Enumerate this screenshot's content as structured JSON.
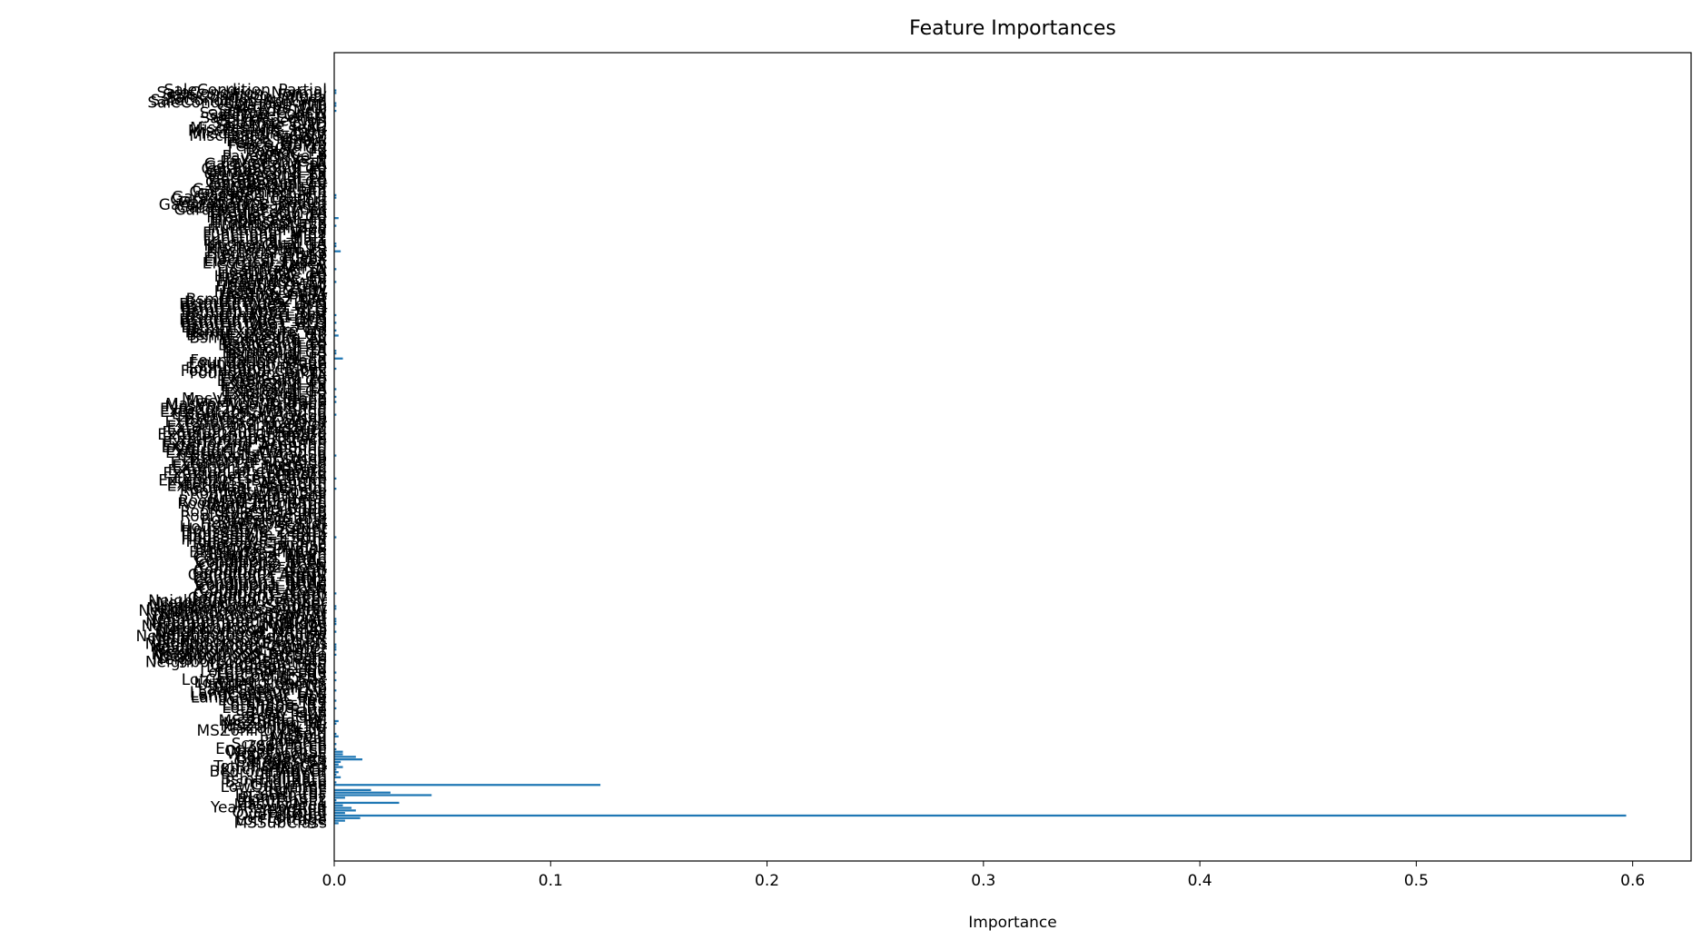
{
  "chart_data": {
    "type": "barh",
    "title": "Feature Importances",
    "xlabel": "Importance",
    "color": "#1f77b4",
    "xlim": [
      0,
      0.627
    ],
    "xticks": [
      {
        "value": 0,
        "label": "0.0"
      },
      0.1,
      0.2,
      0.3,
      0.4,
      0.5,
      0.6
    ],
    "grid": false,
    "categories": [
      "MSSubClass",
      "LotFrontage",
      "LotArea",
      "OverallQual",
      "OverallCond",
      "YearBuilt",
      "YearRemodAdd",
      "MasVnrArea",
      "BsmtFinSF1",
      "BsmtFinSF2",
      "BsmtUnfSF",
      "TotalBsmtSF",
      "1stFlrSF",
      "2ndFlrSF",
      "LowQualFinSF",
      "GrLivArea",
      "BsmtFullBath",
      "BsmtHalfBath",
      "FullBath",
      "HalfBath",
      "BedroomAbvGr",
      "KitchenAbvGr",
      "TotRmsAbvGrd",
      "Fireplaces",
      "GarageYrBlt",
      "GarageCars",
      "GarageArea",
      "WoodDeckSF",
      "OpenPorchSF",
      "EnclosedPorch",
      "3SsnPorch",
      "ScreenPorch",
      "PoolArea",
      "MiscVal",
      "MoSold",
      "YrSold",
      "MSZoning_C (all)",
      "MSZoning_FV",
      "MSZoning_RH",
      "MSZoning_RL",
      "MSZoning_RM",
      "Street_Grvl",
      "Street_Pave",
      "Alley_Grvl",
      "Alley_Pave",
      "LotShape_IR1",
      "LotShape_IR2",
      "LotShape_IR3",
      "LotShape_Reg",
      "LandContour_Bnk",
      "LandContour_HLS",
      "LandContour_Low",
      "LandContour_Lvl",
      "Utilities_AllPub",
      "Utilities_NoSeWa",
      "LotConfig_Corner",
      "LotConfig_CulDSac",
      "LotConfig_FR2",
      "LotConfig_FR3",
      "LotConfig_Inside",
      "LandSlope_Gtl",
      "LandSlope_Mod",
      "LandSlope_Sev",
      "Neighborhood_Blmngtn",
      "Neighborhood_Blueste",
      "Neighborhood_BrDale",
      "Neighborhood_BrkSide",
      "Neighborhood_ClearCr",
      "Neighborhood_CollgCr",
      "Neighborhood_Crawfor",
      "Neighborhood_Edwards",
      "Neighborhood_Gilbert",
      "Neighborhood_IDOTRR",
      "Neighborhood_MeadowV",
      "Neighborhood_Mitchel",
      "Neighborhood_NAmes",
      "Neighborhood_NPkVill",
      "Neighborhood_NWAmes",
      "Neighborhood_NoRidge",
      "Neighborhood_NridgHt",
      "Neighborhood_OldTown",
      "Neighborhood_SWISU",
      "Neighborhood_Sawyer",
      "Neighborhood_SawyerW",
      "Neighborhood_Somerst",
      "Neighborhood_StoneBr",
      "Neighborhood_Timber",
      "Neighborhood_Veenker",
      "Condition1_Artery",
      "Condition1_Feedr",
      "Condition1_Norm",
      "Condition1_PosA",
      "Condition1_PosN",
      "Condition1_RRAe",
      "Condition1_RRAn",
      "Condition1_RRNe",
      "Condition1_RRNn",
      "Condition2_Artery",
      "Condition2_Feedr",
      "Condition2_Norm",
      "Condition2_PosA",
      "Condition2_PosN",
      "Condition2_RRAe",
      "Condition2_RRAn",
      "Condition2_RRNn",
      "BldgType_1Fam",
      "BldgType_2fmCon",
      "BldgType_Duplex",
      "BldgType_Twnhs",
      "BldgType_TwnhsE",
      "HouseStyle_1.5Fin",
      "HouseStyle_1.5Unf",
      "HouseStyle_1Story",
      "HouseStyle_2.5Fin",
      "HouseStyle_2.5Unf",
      "HouseStyle_2Story",
      "HouseStyle_SFoyer",
      "HouseStyle_SLvl",
      "RoofStyle_Flat",
      "RoofStyle_Gable",
      "RoofStyle_Gambrel",
      "RoofStyle_Hip",
      "RoofStyle_Mansard",
      "RoofStyle_Shed",
      "RoofMatl_ClyTile",
      "RoofMatl_CompShg",
      "RoofMatl_Membran",
      "RoofMatl_Metal",
      "RoofMatl_Roll",
      "RoofMatl_Tar&Grv",
      "RoofMatl_WdShake",
      "RoofMatl_WdShngl",
      "Exterior1st_AsbShng",
      "Exterior1st_AsphShn",
      "Exterior1st_BrkComm",
      "Exterior1st_BrkFace",
      "Exterior1st_CBlock",
      "Exterior1st_CemntBd",
      "Exterior1st_HdBoard",
      "Exterior1st_ImStucc",
      "Exterior1st_MetalSd",
      "Exterior1st_Plywood",
      "Exterior1st_Stone",
      "Exterior1st_Stucco",
      "Exterior1st_VinylSd",
      "Exterior1st_Wd Sdng",
      "Exterior1st_WdShing",
      "Exterior2nd_AsbShng",
      "Exterior2nd_AsphShn",
      "Exterior2nd_Brk Cmn",
      "Exterior2nd_BrkFace",
      "Exterior2nd_CBlock",
      "Exterior2nd_CmentBd",
      "Exterior2nd_HdBoard",
      "Exterior2nd_ImStucc",
      "Exterior2nd_MetalSd",
      "Exterior2nd_Other",
      "Exterior2nd_Plywood",
      "Exterior2nd_Stone",
      "Exterior2nd_Stucco",
      "Exterior2nd_VinylSd",
      "Exterior2nd_Wd Sdng",
      "Exterior2nd_Wd Shng",
      "MasVnrType_BrkCmn",
      "MasVnrType_BrkFace",
      "MasVnrType_None",
      "MasVnrType_Stone",
      "ExterQual_Ex",
      "ExterQual_Fa",
      "ExterQual_Gd",
      "ExterQual_TA",
      "ExterCond_Ex",
      "ExterCond_Fa",
      "ExterCond_Gd",
      "ExterCond_Po",
      "ExterCond_TA",
      "Foundation_BrkTil",
      "Foundation_CBlock",
      "Foundation_PConc",
      "Foundation_Slab",
      "Foundation_Stone",
      "Foundation_Wood",
      "BsmtQual_Ex",
      "BsmtQual_Fa",
      "BsmtQual_Gd",
      "BsmtQual_TA",
      "BsmtCond_Fa",
      "BsmtCond_Gd",
      "BsmtCond_Po",
      "BsmtCond_TA",
      "BsmtExposure_Av",
      "BsmtExposure_Gd",
      "BsmtExposure_Mn",
      "BsmtExposure_No",
      "BsmtFinType1_ALQ",
      "BsmtFinType1_BLQ",
      "BsmtFinType1_GLQ",
      "BsmtFinType1_LwQ",
      "BsmtFinType1_Rec",
      "BsmtFinType1_Unf",
      "BsmtFinType2_ALQ",
      "BsmtFinType2_BLQ",
      "BsmtFinType2_GLQ",
      "BsmtFinType2_LwQ",
      "BsmtFinType2_Rec",
      "BsmtFinType2_Unf",
      "Heating_Floor",
      "Heating_GasA",
      "Heating_GasW",
      "Heating_Grav",
      "Heating_OthW",
      "Heating_Wall",
      "HeatingQC_Ex",
      "HeatingQC_Fa",
      "HeatingQC_Gd",
      "HeatingQC_Po",
      "HeatingQC_TA",
      "CentralAir_N",
      "CentralAir_Y",
      "Electrical_FuseA",
      "Electrical_FuseF",
      "Electrical_FuseP",
      "Electrical_Mix",
      "Electrical_SBrkr",
      "KitchenQual_Ex",
      "KitchenQual_Fa",
      "KitchenQual_Gd",
      "KitchenQual_TA",
      "Functional_Maj1",
      "Functional_Maj2",
      "Functional_Min1",
      "Functional_Min2",
      "Functional_Mod",
      "Functional_Sev",
      "Functional_Typ",
      "FireplaceQu_Ex",
      "FireplaceQu_Fa",
      "FireplaceQu_Gd",
      "FireplaceQu_Po",
      "FireplaceQu_TA",
      "GarageType_2Types",
      "GarageType_Attchd",
      "GarageType_Basment",
      "GarageType_BuiltIn",
      "GarageType_CarPort",
      "GarageType_Detchd",
      "GarageFinish_Fin",
      "GarageFinish_RFn",
      "GarageFinish_Unf",
      "GarageQual_Ex",
      "GarageQual_Fa",
      "GarageQual_Gd",
      "GarageQual_Po",
      "GarageQual_TA",
      "GarageCond_Ex",
      "GarageCond_Fa",
      "GarageCond_Gd",
      "GarageCond_Po",
      "GarageCond_TA",
      "PavedDrive_N",
      "PavedDrive_P",
      "PavedDrive_Y",
      "PoolQC_Ex",
      "PoolQC_Fa",
      "PoolQC_Gd",
      "Fence_GdPrv",
      "Fence_GdWo",
      "Fence_MnPrv",
      "Fence_MnWw",
      "MiscFeature_Gar2",
      "MiscFeature_Othr",
      "MiscFeature_Shed",
      "MiscFeature_TenC",
      "SaleType_COD",
      "SaleType_CWD",
      "SaleType_Con",
      "SaleType_ConLD",
      "SaleType_ConLI",
      "SaleType_ConLw",
      "SaleType_New",
      "SaleType_Oth",
      "SaleType_WD",
      "SaleCondition_Abnorml",
      "SaleCondition_AdjLand",
      "SaleCondition_Alloca",
      "SaleCondition_Family",
      "SaleCondition_Normal",
      "SaleCondition_Partial"
    ],
    "values": [
      0.002,
      0.005,
      0.012,
      0.597,
      0.005,
      0.01,
      0.008,
      0.004,
      0.03,
      0.001,
      0.005,
      0.045,
      0.026,
      0.017,
      0,
      0.123,
      0.001,
      0,
      0.003,
      0.001,
      0.002,
      0.001,
      0.004,
      0.002,
      0.003,
      0.013,
      0.01,
      0.004,
      0.004,
      0.001,
      0,
      0.001,
      0,
      0,
      0.002,
      0.001,
      0,
      0,
      0,
      0.001,
      0.002,
      0,
      0,
      0,
      0,
      0.001,
      0,
      0,
      0.001,
      0,
      0,
      0,
      0.001,
      0,
      0,
      0,
      0.001,
      0,
      0,
      0.001,
      0,
      0,
      0,
      0,
      0,
      0,
      0.001,
      0,
      0.001,
      0.001,
      0.001,
      0,
      0,
      0,
      0,
      0.001,
      0,
      0,
      0.001,
      0.001,
      0.001,
      0,
      0,
      0,
      0.001,
      0.001,
      0,
      0,
      0,
      0,
      0.001,
      0,
      0,
      0,
      0,
      0,
      0,
      0,
      0,
      0,
      0,
      0,
      0,
      0,
      0,
      0,
      0,
      0,
      0,
      0,
      0,
      0,
      0.001,
      0,
      0,
      0,
      0,
      0,
      0,
      0,
      0,
      0,
      0,
      0,
      0,
      0,
      0,
      0,
      0,
      0,
      0,
      0.001,
      0,
      0,
      0,
      0.001,
      0,
      0,
      0,
      0,
      0,
      0,
      0,
      0,
      0.001,
      0,
      0,
      0,
      0,
      0,
      0,
      0,
      0,
      0,
      0,
      0,
      0,
      0,
      0,
      0,
      0.001,
      0,
      0,
      0,
      0,
      0.001,
      0,
      0.001,
      0,
      0,
      0.001,
      0,
      0,
      0,
      0,
      0,
      0,
      0,
      0.001,
      0,
      0,
      0,
      0.004,
      0,
      0.001,
      0.001,
      0,
      0,
      0,
      0,
      0,
      0.002,
      0,
      0.001,
      0,
      0,
      0.001,
      0,
      0,
      0.001,
      0,
      0,
      0,
      0,
      0,
      0,
      0,
      0,
      0,
      0,
      0,
      0,
      0.001,
      0,
      0,
      0,
      0,
      0.001,
      0,
      0,
      0,
      0,
      0,
      0,
      0.003,
      0,
      0.001,
      0.001,
      0,
      0,
      0,
      0,
      0,
      0,
      0.001,
      0,
      0,
      0.002,
      0,
      0,
      0,
      0,
      0,
      0,
      0,
      0.001,
      0.001,
      0,
      0,
      0,
      0,
      0,
      0,
      0,
      0,
      0,
      0,
      0,
      0,
      0,
      0,
      0,
      0,
      0,
      0,
      0,
      0,
      0,
      0,
      0,
      0,
      0,
      0,
      0,
      0,
      0,
      0,
      0,
      0,
      0.001,
      0,
      0.001,
      0.001,
      0,
      0,
      0,
      0.001,
      0.001
    ]
  }
}
